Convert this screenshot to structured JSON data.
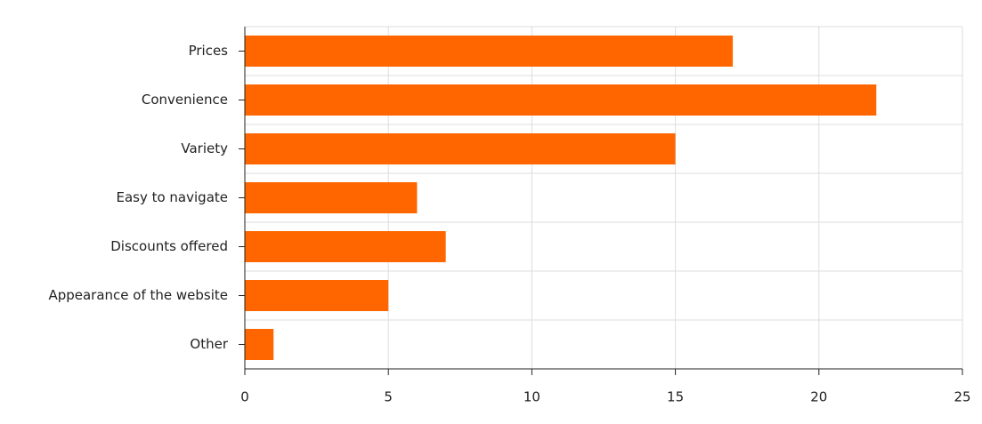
{
  "chart_data": {
    "type": "bar",
    "orientation": "horizontal",
    "categories": [
      "Prices",
      "Convenience",
      "Variety",
      "Easy to navigate",
      "Discounts offered",
      "Appearance of the website",
      "Other"
    ],
    "values": [
      17,
      22,
      15,
      6,
      7,
      5,
      1
    ],
    "color": "#ff6600",
    "xlim": [
      0,
      25
    ],
    "xticks": [
      0,
      5,
      10,
      15,
      20,
      25
    ],
    "grid": true
  }
}
